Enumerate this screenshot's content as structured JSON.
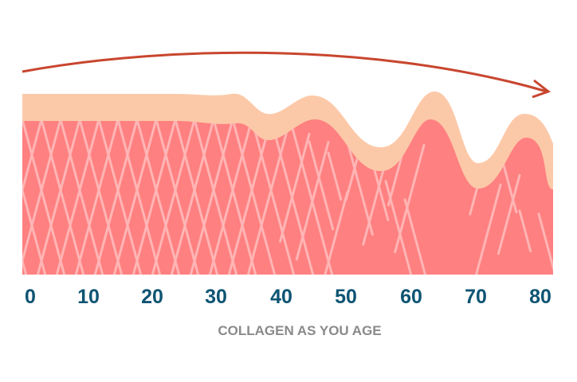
{
  "title": "COLLAGEN AS YOU AGE",
  "age_labels": [
    "0",
    "10",
    "20",
    "30",
    "40",
    "50",
    "60",
    "70",
    "80"
  ],
  "colors": {
    "arrow": "#c8462f",
    "epidermis": "#fcc9a8",
    "dermis": "#ff8080",
    "collagen_fibers": "#ffb5b5",
    "labels": "#0e5473",
    "title": "#8a8a8a"
  },
  "icons": [
    "timeline-arrow-icon"
  ]
}
